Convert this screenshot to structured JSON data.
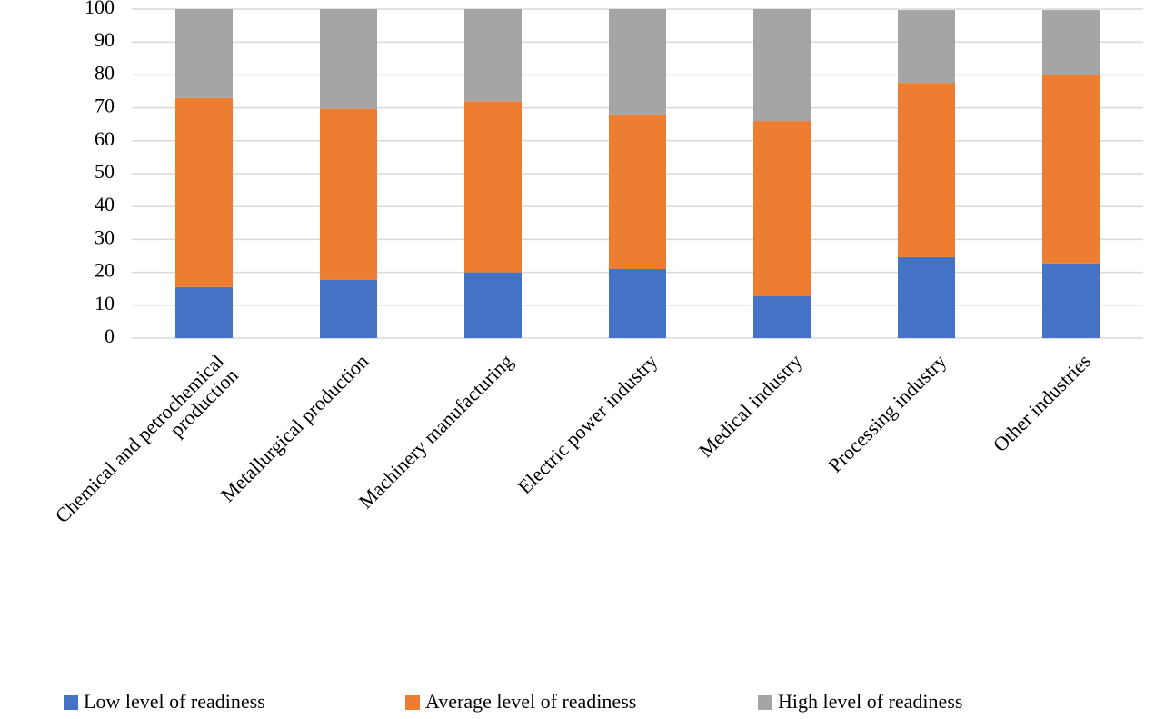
{
  "chart_data": {
    "type": "stacked_bar",
    "categories": [
      "Chemical and petrochemical production",
      "Metallurgical production",
      "Machinery manufacturing",
      "Electric power industry",
      "Medical industry",
      "Processing industry",
      "Other industries"
    ],
    "series": [
      {
        "name": "Low level of readiness",
        "color": "#4472c4",
        "values": [
          15.5,
          17.7,
          20,
          21,
          12.7,
          24.6,
          22.7
        ]
      },
      {
        "name": "Average level of readiness",
        "color": "#ed7d31",
        "values": [
          57.5,
          52,
          52,
          47,
          53.3,
          53,
          57.4
        ]
      },
      {
        "name": "High level of readiness",
        "color": "#a5a5a5",
        "values": [
          27,
          30.3,
          28,
          32,
          34,
          22.1,
          19.6
        ]
      }
    ],
    "ylim": [
      0,
      100
    ],
    "yticks": [
      0,
      10,
      20,
      30,
      40,
      50,
      60,
      70,
      80,
      90,
      100
    ],
    "grid": true,
    "legend": "bottom"
  }
}
